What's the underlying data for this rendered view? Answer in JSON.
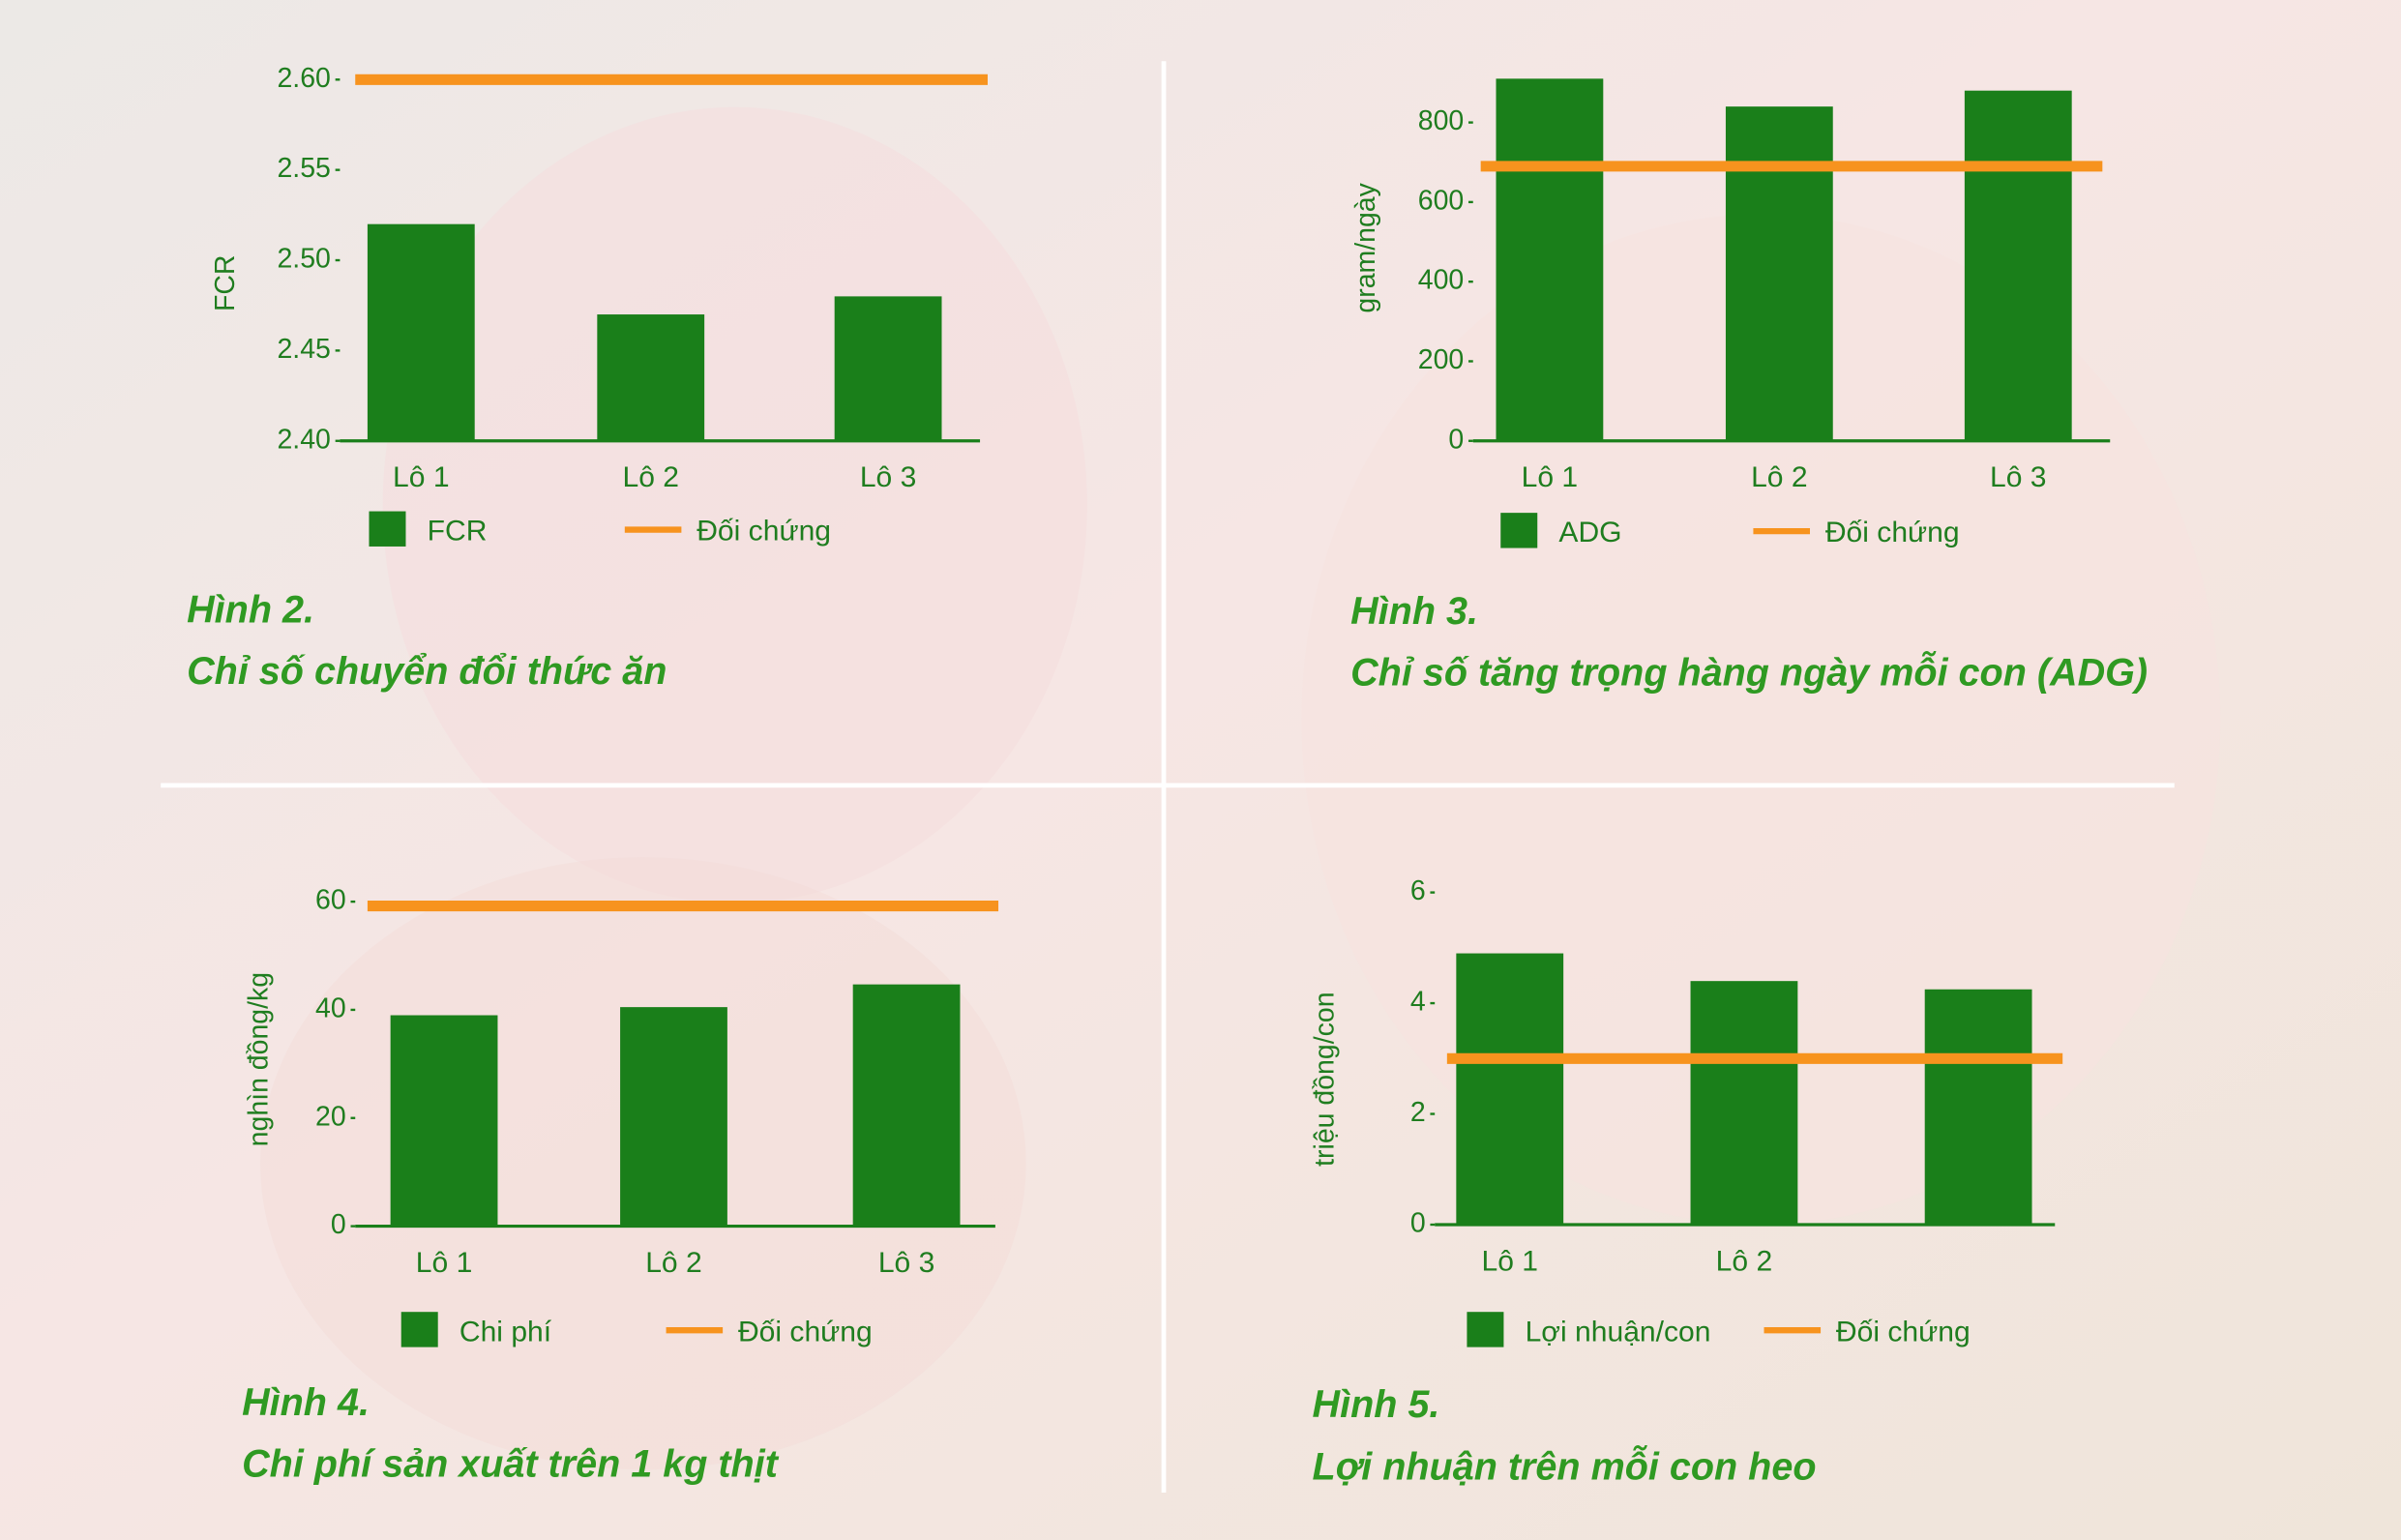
{
  "chart_data": [
    {
      "type": "bar",
      "figure_label": "Hình 2.",
      "title": "Chỉ số chuyển đổi thức ăn",
      "y_label": "FCR",
      "categories": [
        "Lô 1",
        "Lô 2",
        "Lô 3"
      ],
      "series": [
        {
          "name": "FCR",
          "color": "#1a7f1a",
          "values": [
            2.52,
            2.47,
            2.48
          ]
        }
      ],
      "reference": {
        "name": "Đối chứng",
        "color": "#f7931e",
        "value": 2.6
      },
      "ylim": [
        2.4,
        2.6
      ],
      "yticks": [
        {
          "value": 2.4,
          "label": "2.40"
        },
        {
          "value": 2.45,
          "label": "2.45"
        },
        {
          "value": 2.5,
          "label": "2.50"
        },
        {
          "value": 2.55,
          "label": "2.55"
        },
        {
          "value": 2.6,
          "label": "2.60"
        }
      ]
    },
    {
      "type": "bar",
      "figure_label": "Hình 3.",
      "title": "Chỉ số tăng trọng hàng ngày mỗi con (ADG)",
      "y_label": "gram/ngày",
      "categories": [
        "Lô 1",
        "Lô 2",
        "Lô 3"
      ],
      "series": [
        {
          "name": "ADG",
          "color": "#1a7f1a",
          "values": [
            910,
            840,
            880
          ]
        }
      ],
      "reference": {
        "name": "Đối chứng",
        "color": "#f7931e",
        "value": 690
      },
      "ylim": [
        0,
        950
      ],
      "yticks": [
        0,
        200,
        400,
        600,
        800
      ]
    },
    {
      "type": "bar",
      "figure_label": "Hình 4.",
      "title": "Chi phí sản xuất trên 1 kg thịt",
      "y_label": "nghìn đồng/kg",
      "categories": [
        "Lô 1",
        "Lô 2",
        "Lô 3"
      ],
      "series": [
        {
          "name": "Chi phí",
          "color": "#1a7f1a",
          "values": [
            39,
            40.5,
            44.7
          ]
        }
      ],
      "reference": {
        "name": "Đối chứng",
        "color": "#f7931e",
        "value": 59.2
      },
      "ylim": [
        0,
        60
      ],
      "yticks": [
        0,
        20,
        40,
        60
      ]
    },
    {
      "type": "bar",
      "figure_label": "Hình 5.",
      "title": "Lợi nhuận trên mỗi con heo",
      "y_label": "triệu đồng/con",
      "categories": [
        "Lô 1",
        "Lô 2",
        null
      ],
      "series": [
        {
          "name": "Lợi nhuận/con",
          "color": "#1a7f1a",
          "values": [
            4.9,
            4.4,
            4.25
          ]
        }
      ],
      "reference": {
        "name": "Đối chứng",
        "color": "#f7931e",
        "value": 3.0
      },
      "ylim": [
        0,
        6
      ],
      "yticks": [
        0,
        2,
        4,
        6
      ]
    }
  ]
}
